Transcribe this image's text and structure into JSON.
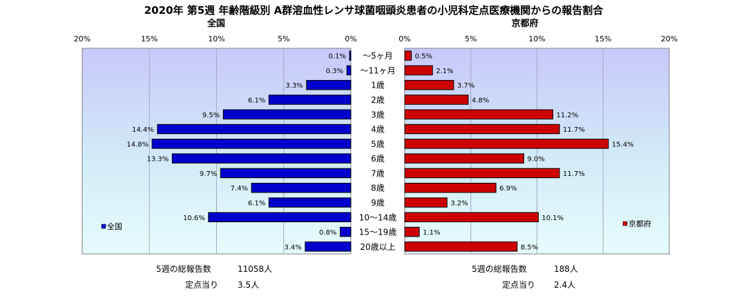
{
  "chart_data": {
    "type": "bar",
    "title": "2020年 第5週 年齢階級別 A群溶血性レンサ球菌咽頭炎患者の小児科定点医療機関からの報告割合",
    "categories": [
      "～5ヶ月",
      "～11ヶ月",
      "1歳",
      "2歳",
      "3歳",
      "4歳",
      "5歳",
      "6歳",
      "7歳",
      "8歳",
      "9歳",
      "10～14歳",
      "15～19歳",
      "20歳以上"
    ],
    "series": [
      {
        "name": "全国",
        "values": [
          0.1,
          0.3,
          3.3,
          6.1,
          9.5,
          14.4,
          14.8,
          13.3,
          9.7,
          7.4,
          6.1,
          10.6,
          0.8,
          3.4
        ],
        "labels": [
          "0.1%",
          "0.3%",
          "3.3%",
          "6.1%",
          "9.5%",
          "14.4%",
          "14.8%",
          "13.3%",
          "9.7%",
          "7.4%",
          "6.1%",
          "10.6%",
          "0.8%",
          "3.4%"
        ],
        "color": "#0000CC",
        "panel_title": "全国",
        "legend": "全国"
      },
      {
        "name": "京都府",
        "values": [
          0.5,
          2.1,
          3.7,
          4.8,
          11.2,
          11.7,
          15.4,
          9.0,
          11.7,
          6.9,
          3.2,
          10.1,
          1.1,
          8.5
        ],
        "labels": [
          "0.5%",
          "2.1%",
          "3.7%",
          "4.8%",
          "11.2%",
          "11.7%",
          "15.4%",
          "9.0%",
          "11.7%",
          "6.9%",
          "3.2%",
          "10.1%",
          "1.1%",
          "8.5%"
        ],
        "color": "#CC0000",
        "panel_title": "京都府",
        "legend": "京都府"
      }
    ],
    "xlim": [
      0,
      20
    ],
    "left_ticks": [
      "20%",
      "15%",
      "10%",
      "5%",
      "0%"
    ],
    "right_ticks": [
      "0%",
      "5%",
      "10%",
      "15%",
      "20%"
    ],
    "grid": true
  },
  "footer": {
    "national": {
      "total_label": "5週の総報告数",
      "total_value": "11058人",
      "per_label": "定点当り",
      "per_value": "3.5人"
    },
    "kyoto": {
      "total_label": "5週の総報告数",
      "total_value": "188人",
      "per_label": "定点当り",
      "per_value": "2.4人"
    }
  }
}
